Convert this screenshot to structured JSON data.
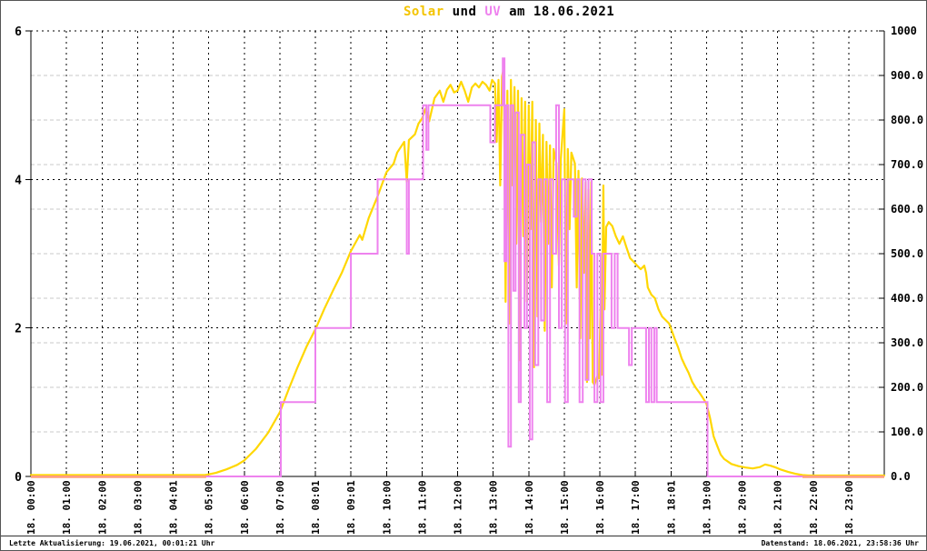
{
  "title": {
    "solar": "Solar",
    "und": " und ",
    "uv": "UV",
    "date": " am 18.06.2021"
  },
  "footer": {
    "left": "Letzte Aktualisierung: 19.06.2021, 00:01:21 Uhr",
    "right": "Datenstand: 18.06.2021, 23:58:36 Uhr"
  },
  "colors": {
    "solar_line": "#FFD700",
    "uv_line": "#EE82EE",
    "overlap_baseline": "#FFA07A",
    "grid_gray": "#C9C9C9",
    "grid_black": "#000000",
    "text": "#000000",
    "background": "#FFFFFF"
  },
  "chart_data": {
    "type": "line",
    "title": "Solar und UV am 18.06.2021",
    "grid": true,
    "x_axis": {
      "unit": "hours",
      "min": 0,
      "max": 24,
      "ticklabels": [
        "18. 00:00",
        "18. 01:00",
        "18. 02:00",
        "18. 03:00",
        "18. 04:01",
        "18. 05:00",
        "18. 06:00",
        "18. 07:00",
        "18. 08:01",
        "18. 09:01",
        "18. 10:00",
        "18. 11:00",
        "18. 12:00",
        "18. 13:00",
        "18. 14:00",
        "18. 15:00",
        "18. 16:00",
        "18. 17:00",
        "18. 18:01",
        "18. 19:00",
        "18. 20:00",
        "18. 21:00",
        "18. 22:00",
        "18. 23:00"
      ]
    },
    "y_left": {
      "min": 0,
      "max": 6,
      "ticks": [
        0,
        2,
        4,
        6
      ],
      "ticklabels": [
        "0",
        "2",
        "4",
        "6"
      ]
    },
    "y_right": {
      "min": 0,
      "max": 1000,
      "tick_step": 100,
      "ticklabels": [
        "0.0",
        "100.0",
        "200.0",
        "300.0",
        "400.0",
        "500.0",
        "600.0",
        "700.0",
        "800.0",
        "900.0",
        "1000"
      ]
    },
    "series": [
      {
        "name": "Solar",
        "axis": "right",
        "style": "line",
        "color": "#FFD700",
        "points": [
          [
            0,
            3
          ],
          [
            4.9,
            3
          ],
          [
            5.2,
            8
          ],
          [
            5.5,
            16
          ],
          [
            5.8,
            26
          ],
          [
            6.0,
            36
          ],
          [
            6.33,
            62
          ],
          [
            6.67,
            98
          ],
          [
            7.0,
            144
          ],
          [
            7.25,
            196
          ],
          [
            7.5,
            245
          ],
          [
            7.75,
            291
          ],
          [
            8.0,
            330
          ],
          [
            8.25,
            376
          ],
          [
            8.5,
            418
          ],
          [
            8.75,
            458
          ],
          [
            9.0,
            506
          ],
          [
            9.25,
            542
          ],
          [
            9.32,
            531
          ],
          [
            9.5,
            580
          ],
          [
            9.75,
            629
          ],
          [
            10.0,
            683
          ],
          [
            10.2,
            702
          ],
          [
            10.3,
            727
          ],
          [
            10.5,
            751
          ],
          [
            10.57,
            661
          ],
          [
            10.63,
            755
          ],
          [
            10.8,
            768
          ],
          [
            10.9,
            792
          ],
          [
            11.0,
            803
          ],
          [
            11.1,
            825
          ],
          [
            11.2,
            797
          ],
          [
            11.35,
            849
          ],
          [
            11.5,
            866
          ],
          [
            11.6,
            841
          ],
          [
            11.7,
            868
          ],
          [
            11.8,
            879
          ],
          [
            11.9,
            862
          ],
          [
            12.0,
            866
          ],
          [
            12.1,
            886
          ],
          [
            12.2,
            866
          ],
          [
            12.3,
            841
          ],
          [
            12.4,
            873
          ],
          [
            12.5,
            882
          ],
          [
            12.6,
            873
          ],
          [
            12.7,
            886
          ],
          [
            12.8,
            879
          ],
          [
            12.9,
            866
          ],
          [
            12.97,
            890
          ],
          [
            13.05,
            882
          ],
          [
            13.1,
            751
          ],
          [
            13.15,
            890
          ],
          [
            13.2,
            653
          ],
          [
            13.25,
            898
          ],
          [
            13.3,
            918
          ],
          [
            13.35,
            392
          ],
          [
            13.4,
            866
          ],
          [
            13.45,
            343
          ],
          [
            13.5,
            890
          ],
          [
            13.55,
            653
          ],
          [
            13.6,
            874
          ],
          [
            13.65,
            522
          ],
          [
            13.7,
            866
          ],
          [
            13.75,
            261
          ],
          [
            13.8,
            849
          ],
          [
            13.85,
            539
          ],
          [
            13.9,
            841
          ],
          [
            13.95,
            392
          ],
          [
            14.0,
            833
          ],
          [
            14.05,
            555
          ],
          [
            14.1,
            841
          ],
          [
            14.15,
            245
          ],
          [
            14.2,
            800
          ],
          [
            14.25,
            359
          ],
          [
            14.3,
            792
          ],
          [
            14.35,
            571
          ],
          [
            14.4,
            767
          ],
          [
            14.45,
            327
          ],
          [
            14.5,
            751
          ],
          [
            14.55,
            522
          ],
          [
            14.6,
            743
          ],
          [
            14.65,
            424
          ],
          [
            14.7,
            735
          ],
          [
            14.78,
            702
          ],
          [
            14.85,
            473
          ],
          [
            14.9,
            710
          ],
          [
            15.0,
            824
          ],
          [
            15.05,
            343
          ],
          [
            15.1,
            735
          ],
          [
            15.15,
            555
          ],
          [
            15.2,
            727
          ],
          [
            15.3,
            702
          ],
          [
            15.35,
            424
          ],
          [
            15.4,
            686
          ],
          [
            15.45,
            310
          ],
          [
            15.5,
            669
          ],
          [
            15.55,
            457
          ],
          [
            15.6,
            661
          ],
          [
            15.64,
            212
          ],
          [
            15.68,
            645
          ],
          [
            15.72,
            310
          ],
          [
            15.76,
            661
          ],
          [
            15.8,
            212
          ],
          [
            15.85,
            206
          ],
          [
            15.95,
            229
          ],
          [
            15.98,
            220
          ],
          [
            16.02,
            380
          ],
          [
            16.05,
            228
          ],
          [
            16.1,
            653
          ],
          [
            16.13,
            375
          ],
          [
            16.18,
            560
          ],
          [
            16.25,
            571
          ],
          [
            16.35,
            562
          ],
          [
            16.45,
            539
          ],
          [
            16.55,
            522
          ],
          [
            16.65,
            539
          ],
          [
            16.75,
            514
          ],
          [
            16.85,
            490
          ],
          [
            16.95,
            482
          ],
          [
            17.05,
            473
          ],
          [
            17.15,
            465
          ],
          [
            17.25,
            473
          ],
          [
            17.3,
            457
          ],
          [
            17.35,
            424
          ],
          [
            17.45,
            408
          ],
          [
            17.55,
            400
          ],
          [
            17.65,
            375
          ],
          [
            17.75,
            359
          ],
          [
            17.85,
            351
          ],
          [
            17.95,
            343
          ],
          [
            18.1,
            310
          ],
          [
            18.2,
            290
          ],
          [
            18.3,
            265
          ],
          [
            18.4,
            248
          ],
          [
            18.5,
            232
          ],
          [
            18.6,
            212
          ],
          [
            18.7,
            199
          ],
          [
            18.8,
            188
          ],
          [
            18.9,
            176
          ],
          [
            19.0,
            163
          ],
          [
            19.1,
            131
          ],
          [
            19.2,
            90
          ],
          [
            19.3,
            69
          ],
          [
            19.4,
            49
          ],
          [
            19.5,
            39
          ],
          [
            19.7,
            28
          ],
          [
            19.9,
            23
          ],
          [
            20.1,
            20
          ],
          [
            20.3,
            18
          ],
          [
            20.5,
            21
          ],
          [
            20.65,
            27
          ],
          [
            20.8,
            24
          ],
          [
            20.95,
            20
          ],
          [
            21.1,
            15
          ],
          [
            21.3,
            10
          ],
          [
            21.5,
            6
          ],
          [
            21.7,
            3
          ],
          [
            21.9,
            2
          ],
          [
            24,
            2
          ]
        ]
      },
      {
        "name": "UV",
        "axis": "left",
        "style": "step",
        "color": "#EE82EE",
        "points": [
          [
            0,
            0
          ],
          [
            7.03,
            1
          ],
          [
            8.0,
            2
          ],
          [
            9.0,
            3
          ],
          [
            9.75,
            4
          ],
          [
            10.57,
            3
          ],
          [
            10.63,
            4
          ],
          [
            11.03,
            5
          ],
          [
            11.12,
            4.4
          ],
          [
            11.18,
            5
          ],
          [
            12.92,
            4.5
          ],
          [
            13.05,
            5
          ],
          [
            13.27,
            5.63
          ],
          [
            13.32,
            2.9
          ],
          [
            13.37,
            5
          ],
          [
            13.43,
            0.4
          ],
          [
            13.5,
            5
          ],
          [
            13.57,
            2.5
          ],
          [
            13.63,
            4.9
          ],
          [
            13.72,
            1
          ],
          [
            13.78,
            4.6
          ],
          [
            13.88,
            2
          ],
          [
            13.95,
            4.2
          ],
          [
            14.03,
            0.5
          ],
          [
            14.1,
            4.5
          ],
          [
            14.18,
            1.5
          ],
          [
            14.27,
            4
          ],
          [
            14.35,
            2.1
          ],
          [
            14.43,
            4
          ],
          [
            14.52,
            1
          ],
          [
            14.6,
            4
          ],
          [
            14.68,
            3
          ],
          [
            14.77,
            5
          ],
          [
            14.85,
            2
          ],
          [
            14.93,
            4
          ],
          [
            15.02,
            1
          ],
          [
            15.1,
            4
          ],
          [
            15.27,
            3.5
          ],
          [
            15.35,
            4
          ],
          [
            15.43,
            1
          ],
          [
            15.52,
            4
          ],
          [
            15.6,
            1.3
          ],
          [
            15.68,
            4
          ],
          [
            15.77,
            3
          ],
          [
            15.85,
            1
          ],
          [
            15.93,
            3
          ],
          [
            16.02,
            1
          ],
          [
            16.1,
            3
          ],
          [
            16.33,
            2
          ],
          [
            16.42,
            3
          ],
          [
            16.5,
            2
          ],
          [
            16.73,
            2
          ],
          [
            16.82,
            1.5
          ],
          [
            16.9,
            2
          ],
          [
            17.3,
            1
          ],
          [
            17.38,
            2
          ],
          [
            17.45,
            1
          ],
          [
            17.53,
            2
          ],
          [
            17.6,
            1
          ],
          [
            19.03,
            0
          ]
        ]
      }
    ],
    "overlap_baseline_segments": [
      [
        0,
        4.93
      ],
      [
        21.7,
        24
      ]
    ],
    "legend": "none"
  }
}
